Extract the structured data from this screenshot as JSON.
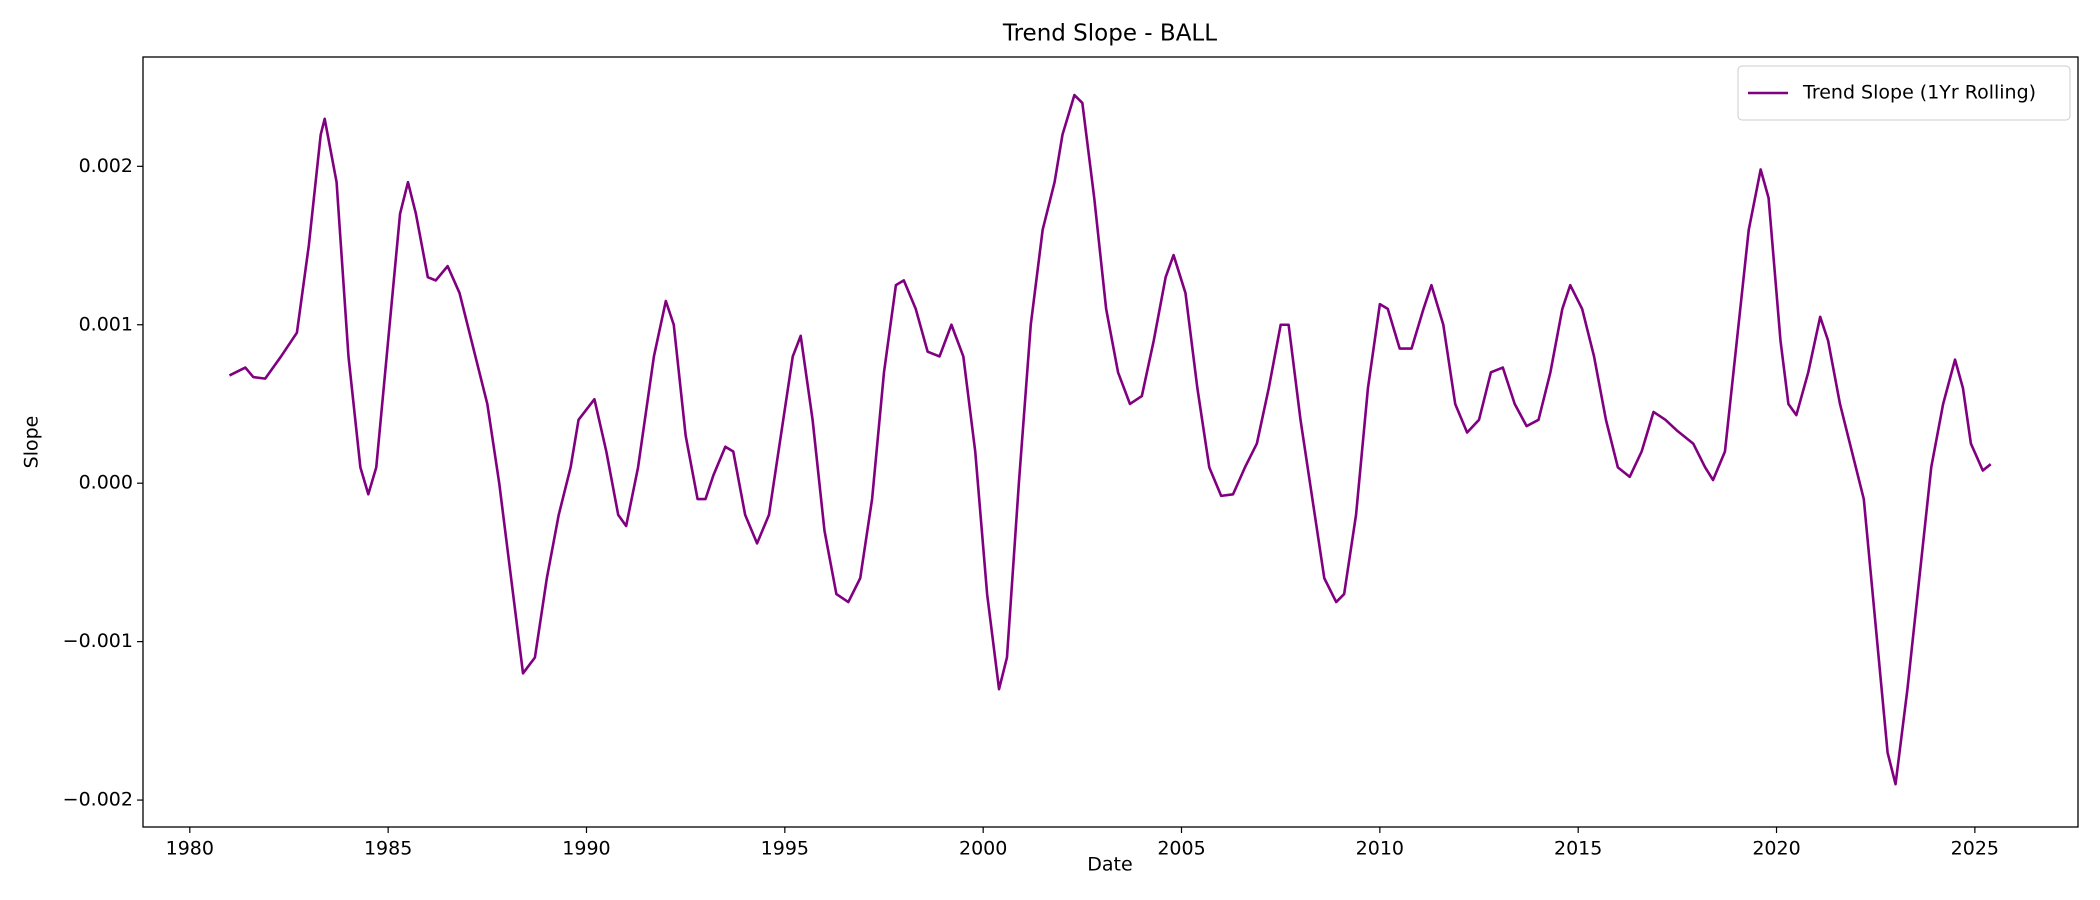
{
  "chart_data": {
    "type": "line",
    "title": "Trend Slope - BALL",
    "x_label": "Date",
    "y_label": "Slope",
    "xlim": [
      1978.82,
      2027.6
    ],
    "ylim": [
      -0.00217,
      0.00269
    ],
    "xticks": [
      1980,
      1985,
      1990,
      1995,
      2000,
      2005,
      2010,
      2015,
      2020,
      2025
    ],
    "yticks": [
      {
        "value": -0.002,
        "label": "−0.002"
      },
      {
        "value": -0.001,
        "label": "−0.001"
      },
      {
        "value": 0,
        "label": "0.000"
      },
      {
        "value": 0.001,
        "label": "0.001"
      },
      {
        "value": 0.002,
        "label": "0.002"
      }
    ],
    "grid": false,
    "legend": "upper right",
    "x": [
      1981.0,
      1981.4,
      1981.6,
      1981.9,
      1982.3,
      1982.7,
      1983.0,
      1983.3,
      1983.4,
      1983.7,
      1984.0,
      1984.3,
      1984.5,
      1984.7,
      1985.0,
      1985.3,
      1985.5,
      1985.7,
      1986.0,
      1986.2,
      1986.5,
      1986.8,
      1987.2,
      1987.5,
      1987.8,
      1988.1,
      1988.4,
      1988.7,
      1989.0,
      1989.3,
      1989.6,
      1989.8,
      1990.2,
      1990.5,
      1990.8,
      1991.0,
      1991.3,
      1991.7,
      1992.0,
      1992.2,
      1992.5,
      1992.8,
      1993.0,
      1993.2,
      1993.5,
      1993.7,
      1994.0,
      1994.3,
      1994.6,
      1994.9,
      1995.2,
      1995.4,
      1995.7,
      1996.0,
      1996.3,
      1996.6,
      1996.9,
      1997.2,
      1997.5,
      1997.8,
      1998.0,
      1998.3,
      1998.6,
      1998.9,
      1999.2,
      1999.5,
      1999.8,
      2000.1,
      2000.4,
      2000.6,
      2000.9,
      2001.2,
      2001.5,
      2001.8,
      2002.0,
      2002.3,
      2002.5,
      2002.8,
      2003.1,
      2003.4,
      2003.7,
      2004.0,
      2004.3,
      2004.6,
      2004.8,
      2005.1,
      2005.4,
      2005.7,
      2006.0,
      2006.3,
      2006.6,
      2006.9,
      2007.2,
      2007.5,
      2007.7,
      2008.0,
      2008.3,
      2008.6,
      2008.9,
      2009.1,
      2009.4,
      2009.7,
      2010.0,
      2010.2,
      2010.5,
      2010.8,
      2011.1,
      2011.3,
      2011.6,
      2011.9,
      2012.2,
      2012.5,
      2012.8,
      2013.1,
      2013.4,
      2013.7,
      2014.0,
      2014.3,
      2014.6,
      2014.8,
      2015.1,
      2015.4,
      2015.7,
      2016.0,
      2016.3,
      2016.6,
      2016.9,
      2017.2,
      2017.5,
      2017.9,
      2018.2,
      2018.4,
      2018.7,
      2019.0,
      2019.3,
      2019.6,
      2019.8,
      2020.1,
      2020.3,
      2020.5,
      2020.8,
      2021.1,
      2021.3,
      2021.6,
      2021.9,
      2022.2,
      2022.5,
      2022.8,
      2023.0,
      2023.3,
      2023.6,
      2023.9,
      2024.2,
      2024.5,
      2024.7,
      2024.9,
      2025.2,
      2025.4
    ],
    "series": [
      {
        "name": "Trend Slope (1Yr Rolling)",
        "color": "#800080",
        "values": [
          0.00068,
          0.00073,
          0.00067,
          0.00066,
          0.0008,
          0.00095,
          0.0015,
          0.0022,
          0.0023,
          0.0019,
          0.0008,
          0.0001,
          -7e-05,
          0.0001,
          0.0009,
          0.0017,
          0.0019,
          0.0017,
          0.0013,
          0.00128,
          0.00137,
          0.0012,
          0.0008,
          0.0005,
          0.0,
          -0.0006,
          -0.0012,
          -0.0011,
          -0.0006,
          -0.0002,
          0.0001,
          0.0004,
          0.00053,
          0.0002,
          -0.0002,
          -0.00027,
          0.0001,
          0.0008,
          0.00115,
          0.001,
          0.0003,
          -0.0001,
          -0.0001,
          5e-05,
          0.00023,
          0.0002,
          -0.0002,
          -0.00038,
          -0.0002,
          0.0003,
          0.0008,
          0.00093,
          0.0004,
          -0.0003,
          -0.0007,
          -0.00075,
          -0.0006,
          -0.0001,
          0.0007,
          0.00125,
          0.00128,
          0.0011,
          0.00083,
          0.0008,
          0.001,
          0.0008,
          0.0002,
          -0.0007,
          -0.0013,
          -0.0011,
          0.0,
          0.001,
          0.0016,
          0.0019,
          0.0022,
          0.00245,
          0.0024,
          0.0018,
          0.0011,
          0.0007,
          0.0005,
          0.00055,
          0.0009,
          0.0013,
          0.00144,
          0.0012,
          0.0006,
          0.0001,
          -8e-05,
          -7e-05,
          0.0001,
          0.00025,
          0.0006,
          0.001,
          0.001,
          0.0004,
          -0.0001,
          -0.0006,
          -0.00075,
          -0.0007,
          -0.0002,
          0.0006,
          0.00113,
          0.0011,
          0.00085,
          0.00085,
          0.0011,
          0.00125,
          0.001,
          0.0005,
          0.00032,
          0.0004,
          0.0007,
          0.00073,
          0.0005,
          0.00036,
          0.0004,
          0.0007,
          0.0011,
          0.00125,
          0.0011,
          0.0008,
          0.0004,
          0.0001,
          4e-05,
          0.0002,
          0.00045,
          0.0004,
          0.00033,
          0.00025,
          0.0001,
          2e-05,
          0.0002,
          0.0009,
          0.0016,
          0.00198,
          0.0018,
          0.0009,
          0.0005,
          0.00043,
          0.0007,
          0.00105,
          0.0009,
          0.0005,
          0.0002,
          -0.0001,
          -0.0009,
          -0.0017,
          -0.0019,
          -0.0013,
          -0.0006,
          0.0001,
          0.0005,
          0.00078,
          0.0006,
          0.00025,
          8e-05,
          0.00012
        ]
      }
    ]
  }
}
